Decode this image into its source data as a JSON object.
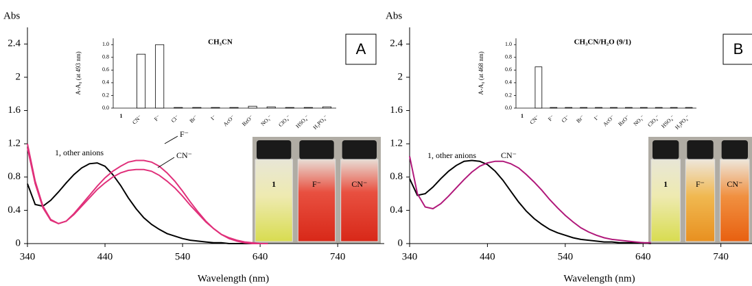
{
  "chart_data": [
    {
      "type": "line",
      "panel_label": "A",
      "y_label": "Abs",
      "x_label": "Wavelength (nm)",
      "xlim": [
        340,
        800
      ],
      "ylim": [
        0,
        2.6
      ],
      "xticks": [
        340,
        440,
        540,
        640,
        740
      ],
      "yticks": [
        0,
        0.4,
        0.8,
        1.2,
        1.6,
        2,
        2.4
      ],
      "x": [
        340,
        350,
        360,
        370,
        380,
        390,
        400,
        410,
        420,
        430,
        440,
        450,
        460,
        470,
        480,
        490,
        500,
        510,
        520,
        530,
        540,
        550,
        560,
        570,
        580,
        590,
        600,
        610,
        620,
        630,
        640,
        650
      ],
      "series": [
        {
          "name": "1, other anions",
          "color": "#000000",
          "values": [
            0.72,
            0.47,
            0.45,
            0.52,
            0.62,
            0.73,
            0.83,
            0.91,
            0.96,
            0.97,
            0.93,
            0.83,
            0.7,
            0.55,
            0.42,
            0.31,
            0.23,
            0.17,
            0.12,
            0.09,
            0.06,
            0.04,
            0.03,
            0.02,
            0.01,
            0.01,
            0,
            0,
            0,
            0,
            0,
            0
          ]
        },
        {
          "name": "F⁻",
          "color": "#e0307a",
          "values": [
            1.2,
            0.75,
            0.45,
            0.29,
            0.24,
            0.27,
            0.36,
            0.47,
            0.58,
            0.69,
            0.79,
            0.87,
            0.93,
            0.98,
            1.0,
            1.0,
            0.98,
            0.93,
            0.85,
            0.75,
            0.63,
            0.5,
            0.38,
            0.27,
            0.18,
            0.11,
            0.06,
            0.03,
            0.01,
            0,
            0,
            0
          ]
        },
        {
          "name": "CN⁻",
          "color": "#e0307a",
          "values": [
            1.15,
            0.72,
            0.43,
            0.28,
            0.24,
            0.27,
            0.35,
            0.45,
            0.55,
            0.65,
            0.73,
            0.8,
            0.85,
            0.88,
            0.89,
            0.89,
            0.87,
            0.82,
            0.75,
            0.67,
            0.57,
            0.46,
            0.36,
            0.26,
            0.18,
            0.11,
            0.07,
            0.04,
            0.02,
            0.01,
            0,
            0
          ]
        }
      ],
      "photo_labels": [
        "1",
        "F⁻",
        "CN⁻"
      ]
    },
    {
      "type": "bar",
      "title": "CH₃CN",
      "y_label": "A-A₀ (at 493 nm)",
      "color": "#ffffff",
      "categories": [
        "1",
        "CN⁻",
        "F⁻",
        "Cl⁻",
        "Br⁻",
        "I⁻",
        "AcO⁻",
        "BzO⁻",
        "NO₃⁻",
        "ClO₄⁻",
        "HSO₄⁻",
        "H₂PO₄⁻"
      ],
      "values": [
        0,
        0.85,
        1.0,
        0.01,
        0.01,
        0.01,
        0.01,
        0.03,
        0.02,
        0.01,
        0.01,
        0.02
      ],
      "ylim": [
        0,
        1.1
      ],
      "yticks": [
        {
          "value": 0,
          "label": "0.0"
        },
        0.2,
        0.4,
        0.6,
        0.8,
        {
          "value": 1,
          "label": "1.0"
        }
      ]
    },
    {
      "type": "line",
      "panel_label": "B",
      "y_label": "Abs",
      "x_label": "Wavelength (nm)",
      "xlim": [
        340,
        780
      ],
      "ylim": [
        0,
        2.6
      ],
      "xticks": [
        340,
        440,
        540,
        640,
        740
      ],
      "yticks": [
        0,
        0.4,
        0.8,
        1.2,
        1.6,
        2,
        2.4
      ],
      "x": [
        340,
        350,
        360,
        370,
        380,
        390,
        400,
        410,
        420,
        430,
        440,
        450,
        460,
        470,
        480,
        490,
        500,
        510,
        520,
        530,
        540,
        550,
        560,
        570,
        580,
        590,
        600,
        610,
        620,
        630,
        640,
        650
      ],
      "series": [
        {
          "name": "1, other anions",
          "color": "#000000",
          "values": [
            0.78,
            0.58,
            0.6,
            0.68,
            0.78,
            0.87,
            0.94,
            0.99,
            1.0,
            0.99,
            0.95,
            0.87,
            0.76,
            0.63,
            0.5,
            0.39,
            0.3,
            0.23,
            0.17,
            0.13,
            0.1,
            0.07,
            0.05,
            0.04,
            0.03,
            0.02,
            0.02,
            0.01,
            0.01,
            0.01,
            0.01,
            0
          ]
        },
        {
          "name": "CN⁻",
          "color": "#b0187a",
          "values": [
            1.05,
            0.6,
            0.44,
            0.42,
            0.48,
            0.57,
            0.67,
            0.77,
            0.86,
            0.93,
            0.97,
            0.99,
            0.99,
            0.96,
            0.91,
            0.83,
            0.74,
            0.64,
            0.53,
            0.43,
            0.34,
            0.26,
            0.19,
            0.14,
            0.1,
            0.07,
            0.05,
            0.04,
            0.03,
            0.02,
            0.01,
            0.01
          ]
        }
      ],
      "photo_labels": [
        "1",
        "F⁻",
        "CN⁻"
      ]
    },
    {
      "type": "bar",
      "title": "CH₃CN/H₂O (9/1)",
      "y_label": "A-A₀ (at 468 nm)",
      "color": "#ffffff",
      "categories": [
        "1",
        "CN⁻",
        "F⁻",
        "Cl⁻",
        "Br⁻",
        "I⁻",
        "AcO⁻",
        "BzO⁻",
        "NO₃⁻",
        "ClO₄⁻",
        "HSO₄⁻",
        "H₂PO₄⁻"
      ],
      "values": [
        0,
        0.65,
        0.01,
        0.01,
        0.01,
        0.01,
        0.01,
        0.01,
        0.01,
        0.01,
        0.01,
        0.01
      ],
      "ylim": [
        0,
        1.1
      ],
      "yticks": [
        {
          "value": 0,
          "label": "0.0"
        },
        0.2,
        0.4,
        0.6,
        0.8,
        {
          "value": 1,
          "label": "1.0"
        }
      ]
    }
  ]
}
